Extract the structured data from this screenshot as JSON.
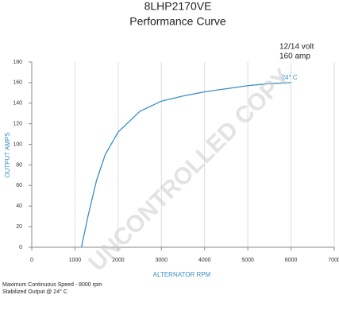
{
  "chart_data": {
    "type": "line",
    "title": "8LHP2170VE",
    "subtitle": "Performance Curve",
    "annotations": [
      "12/14 volt",
      "160 amp"
    ],
    "x_label": "ALTERNATOR RPM",
    "y_label": "OUTPUT AMPS",
    "x": [
      1150,
      1300,
      1500,
      1700,
      2000,
      2500,
      3000,
      3500,
      4000,
      4500,
      5000,
      5500,
      6000
    ],
    "series": [
      {
        "name": "24° C",
        "color": "#3a8fc4",
        "values": [
          0,
          30,
          65,
          90,
          112,
          132,
          142,
          147,
          151,
          154,
          157,
          159,
          160
        ]
      }
    ],
    "xlim": [
      0,
      7000
    ],
    "xticks": [
      0,
      1000,
      2000,
      3000,
      4000,
      5000,
      6000,
      7000
    ],
    "ylim": [
      0,
      180
    ],
    "yticks": [
      0,
      20,
      40,
      60,
      80,
      100,
      120,
      140,
      160,
      180
    ],
    "grid": true,
    "notes": [
      "Maximum Continuous Speed - 8000 rpm",
      "Stabilized Output @ 24° C"
    ],
    "watermark": "UNCONTROLLED COPY"
  }
}
